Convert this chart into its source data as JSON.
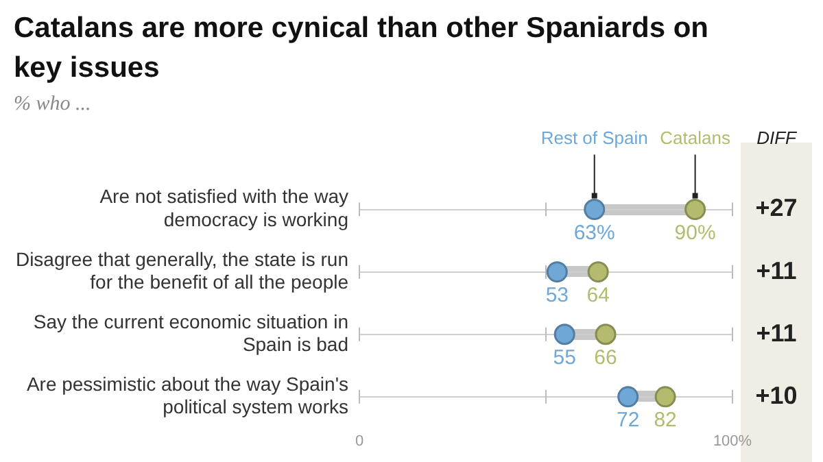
{
  "chart_data": {
    "type": "scatter",
    "orientation": "horizontal",
    "title": "Catalans are more cynical than other Spaniards on key issues",
    "subtitle": "% who ...",
    "categories": [
      "Are not satisfied with the way democracy is working",
      "Disagree that generally, the state is run for the benefit of all the people",
      "Say the current economic situation in Spain is bad",
      "Are pessimistic about the way Spain's political system works"
    ],
    "series": [
      {
        "name": "Rest of Spain",
        "color": "#6fa8d6",
        "values": [
          63,
          53,
          55,
          72
        ],
        "value_labels": [
          "63%",
          "53",
          "55",
          "72"
        ]
      },
      {
        "name": "Catalans",
        "color": "#b4bb6e",
        "values": [
          90,
          64,
          66,
          82
        ],
        "value_labels": [
          "90%",
          "64",
          "66",
          "82"
        ]
      }
    ],
    "xlim": [
      0,
      100
    ],
    "xticks": [
      {
        "value": 0,
        "label": "0"
      },
      {
        "value": 50,
        "label": null
      },
      {
        "value": 100,
        "label": "100%"
      }
    ],
    "grid": "y",
    "legend": "top",
    "marker": "circle",
    "annotations": [
      "DIFF",
      "+27",
      "+11",
      "+11",
      "+10"
    ]
  }
}
